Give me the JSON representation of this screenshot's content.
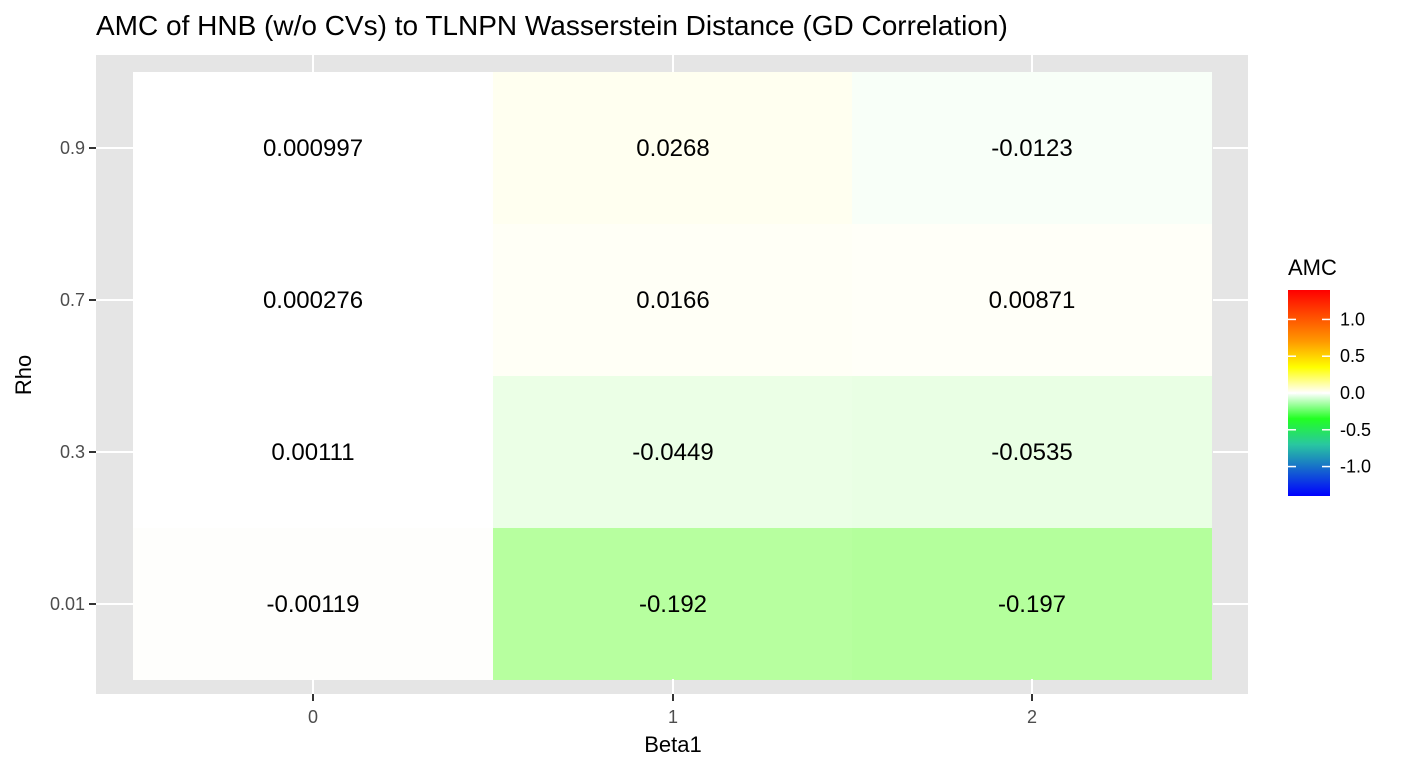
{
  "chart_data": {
    "type": "heatmap",
    "title": "AMC of HNB (w/o CVs) to TLNPN Wasserstein Distance (GD Correlation)",
    "xlabel": "Beta1",
    "ylabel": "Rho",
    "x_categories": [
      "0",
      "1",
      "2"
    ],
    "y_categories": [
      "0.01",
      "0.3",
      "0.7",
      "0.9"
    ],
    "cells": [
      {
        "x": "0",
        "y": "0.9",
        "value": 0.000997,
        "label": "0.000997"
      },
      {
        "x": "1",
        "y": "0.9",
        "value": 0.0268,
        "label": "0.0268"
      },
      {
        "x": "2",
        "y": "0.9",
        "value": -0.0123,
        "label": "-0.0123"
      },
      {
        "x": "0",
        "y": "0.7",
        "value": 0.000276,
        "label": "0.000276"
      },
      {
        "x": "1",
        "y": "0.7",
        "value": 0.0166,
        "label": "0.0166"
      },
      {
        "x": "2",
        "y": "0.7",
        "value": 0.00871,
        "label": "0.00871"
      },
      {
        "x": "0",
        "y": "0.3",
        "value": 0.00111,
        "label": "0.00111"
      },
      {
        "x": "1",
        "y": "0.3",
        "value": -0.0449,
        "label": "-0.0449"
      },
      {
        "x": "2",
        "y": "0.3",
        "value": -0.0535,
        "label": "-0.0535"
      },
      {
        "x": "0",
        "y": "0.01",
        "value": -0.00119,
        "label": "-0.00119"
      },
      {
        "x": "1",
        "y": "0.01",
        "value": -0.192,
        "label": "-0.192"
      },
      {
        "x": "2",
        "y": "0.01",
        "value": -0.197,
        "label": "-0.197"
      }
    ],
    "legend": {
      "title": "AMC",
      "position": "right",
      "limits": [
        -1.4,
        1.4
      ],
      "ticks": [
        1.0,
        0.5,
        0.0,
        -0.5,
        -1.0
      ],
      "tick_labels": [
        "1.0",
        "0.5",
        "0.0",
        "-0.5",
        "-1.0"
      ],
      "color_stops": [
        {
          "value": -1.4,
          "color": "#0000FF"
        },
        {
          "value": -0.7,
          "color": "#29C7A0"
        },
        {
          "value": -0.35,
          "color": "#22FF22"
        },
        {
          "value": 0.0,
          "color": "#FFFFFF"
        },
        {
          "value": 0.35,
          "color": "#FFFF00"
        },
        {
          "value": 0.7,
          "color": "#FF9900"
        },
        {
          "value": 1.4,
          "color": "#FF0000"
        }
      ]
    },
    "cell_fill_colors": {
      "0.9": [
        "#FFFFFF",
        "#FFFFF0",
        "#F8FFF8"
      ],
      "0.7": [
        "#FFFFFF",
        "#FFFFF6",
        "#FFFFF8"
      ],
      "0.3": [
        "#FFFFFF",
        "#EBFFE6",
        "#E9FFE4"
      ],
      "0.01": [
        "#FEFEFC",
        "#B7FF9F",
        "#B4FF9C"
      ]
    },
    "panel_background": "#E5E5E5",
    "grid": true
  }
}
